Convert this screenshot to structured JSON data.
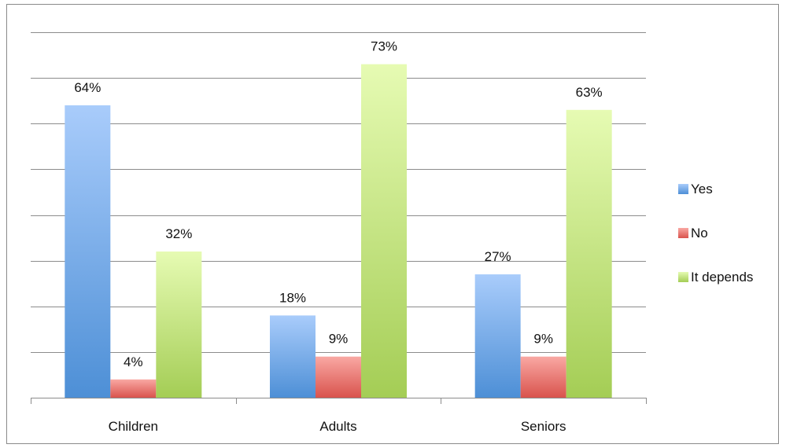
{
  "chart_data": {
    "type": "bar",
    "categories": [
      "Children",
      "Adults",
      "Seniors"
    ],
    "series": [
      {
        "name": "Yes",
        "values": [
          64,
          18,
          27
        ],
        "labels": [
          "64%",
          "18%",
          "27%"
        ],
        "color_top": "#a9ccfb",
        "color_bottom": "#4d8fd6"
      },
      {
        "name": "No",
        "values": [
          4,
          9,
          9
        ],
        "labels": [
          "4%",
          "9%",
          "9%"
        ],
        "color_top": "#f9a8a3",
        "color_bottom": "#d9534d"
      },
      {
        "name": "It depends",
        "values": [
          32,
          73,
          63
        ],
        "labels": [
          "32%",
          "73%",
          "63%"
        ],
        "color_top": "#e6fbb3",
        "color_bottom": "#a4cd55"
      }
    ],
    "title": "",
    "xlabel": "",
    "ylabel": "",
    "ylim": [
      0,
      80
    ],
    "y_gridlines": 8,
    "grid": true,
    "legend_position": "right"
  }
}
